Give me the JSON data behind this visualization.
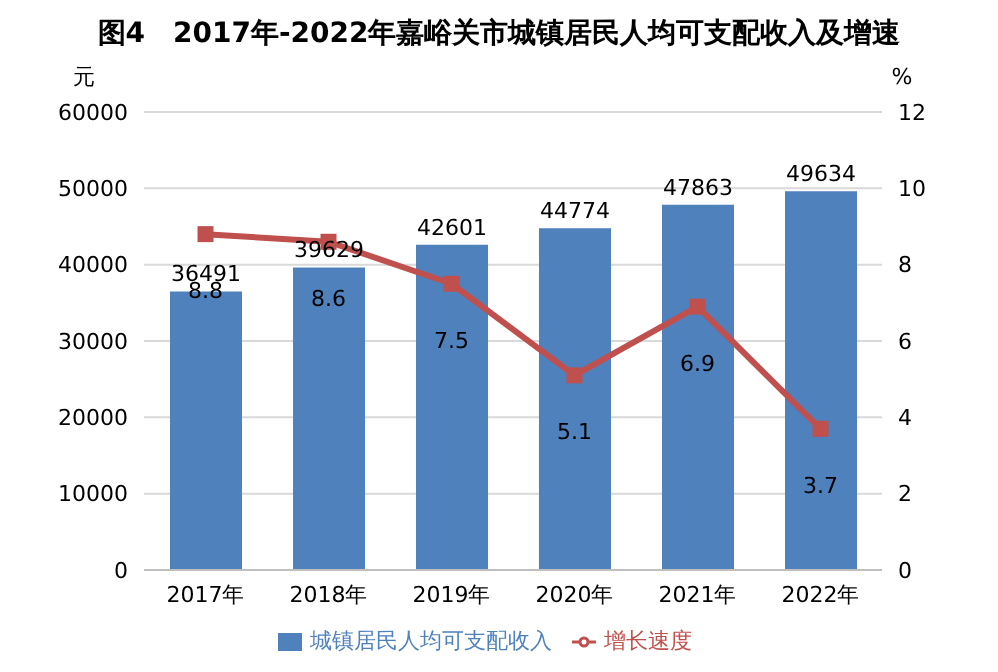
{
  "chart_data": {
    "type": "bar",
    "title": "图4　2017年-2022年嘉峪关市城镇居民人均可支配收入及增速",
    "ylabel": "元",
    "y2label": "%",
    "categories": [
      "2017年",
      "2018年",
      "2019年",
      "2020年",
      "2021年",
      "2022年"
    ],
    "series": [
      {
        "name": "城镇居民人均可支配收入",
        "color": "#4f81bd",
        "values": [
          36491,
          39629,
          42601,
          44774,
          47863,
          49634
        ]
      },
      {
        "name": "增长速度",
        "type": "line",
        "axis": "y2",
        "color": "#c0504d",
        "values": [
          8.8,
          8.6,
          7.5,
          5.1,
          6.9,
          3.7
        ]
      }
    ],
    "ylim": [
      0,
      60000
    ],
    "yticks": [
      0,
      10000,
      20000,
      30000,
      40000,
      50000,
      60000
    ],
    "y2lim": [
      0,
      12
    ],
    "y2ticks": [
      0,
      2,
      4,
      6,
      8,
      10,
      12
    ],
    "grid": "y",
    "legend": "bottom",
    "marker": "square",
    "data_labels": true
  }
}
